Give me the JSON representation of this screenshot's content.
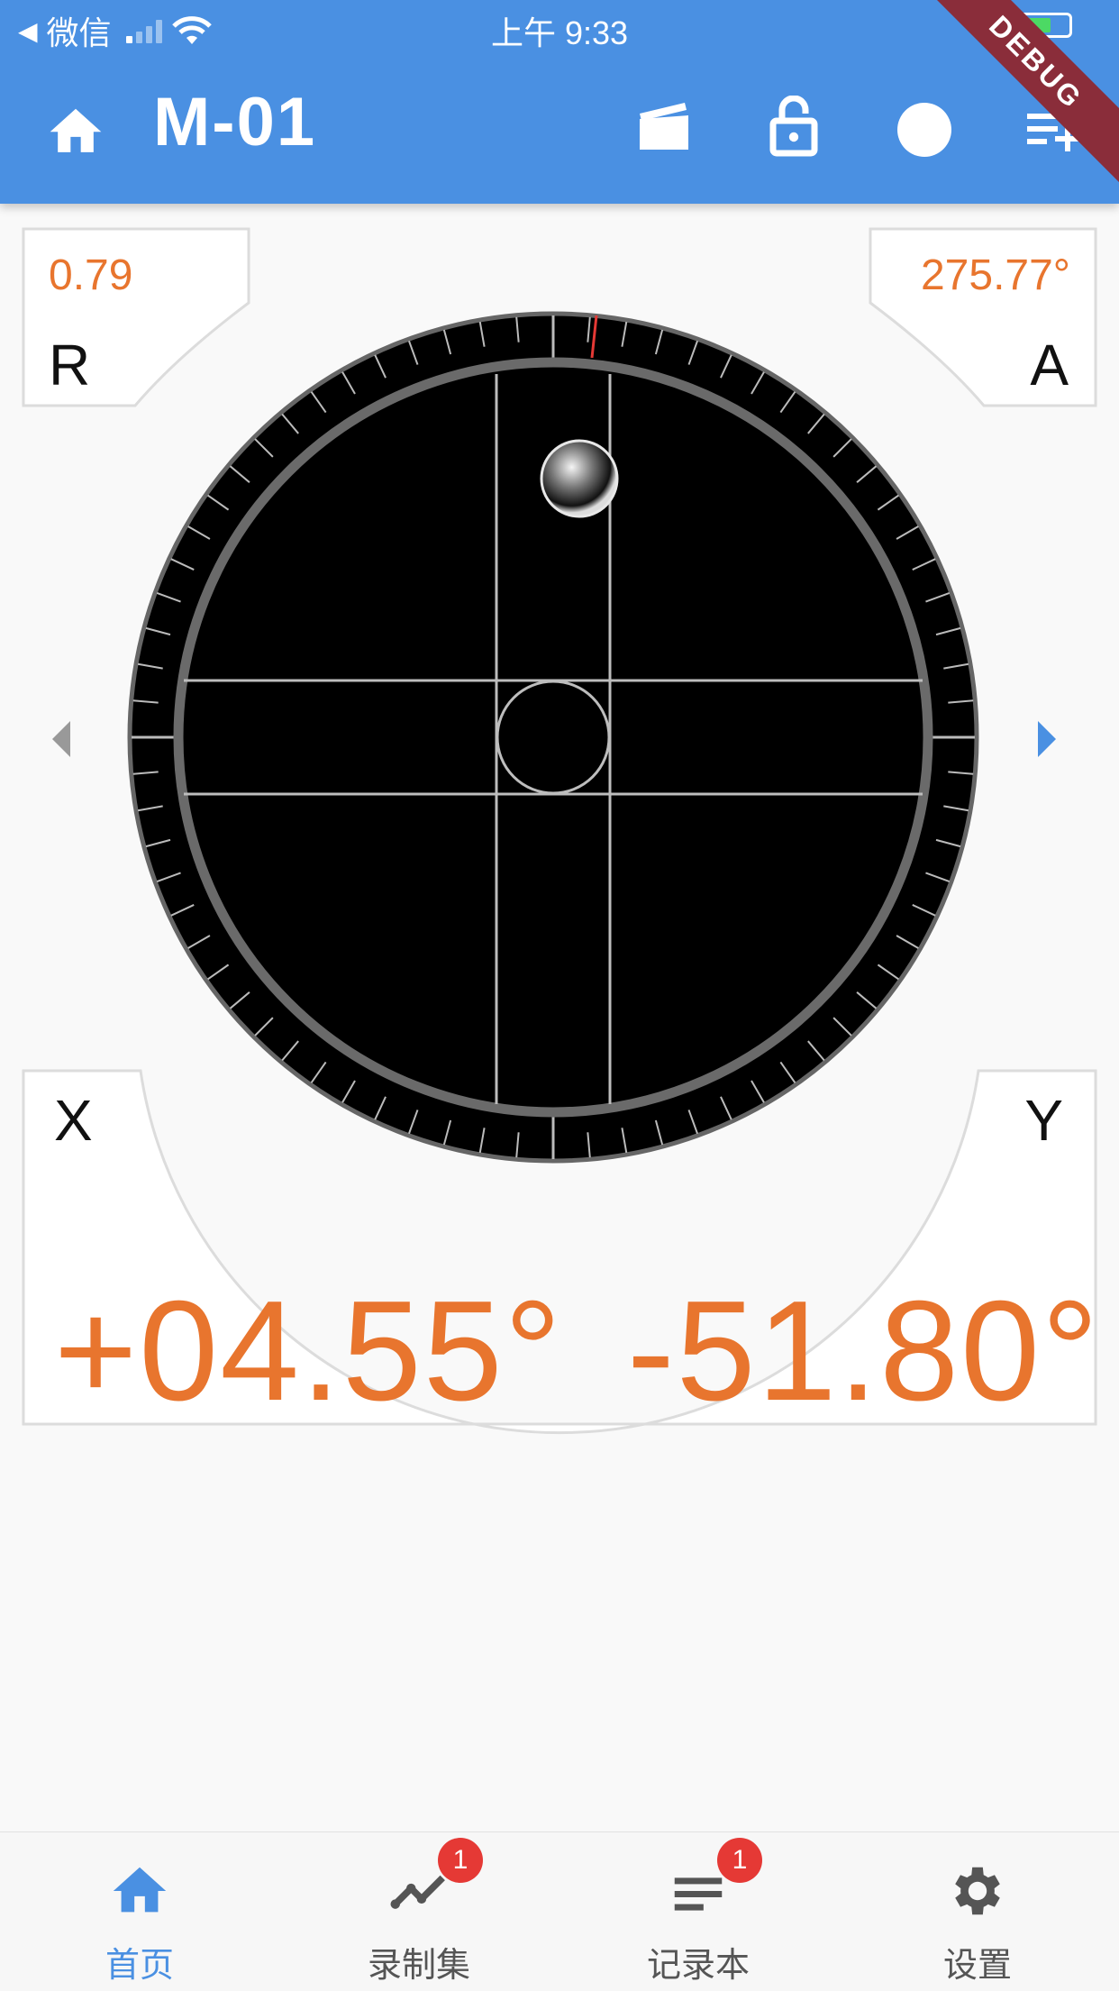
{
  "status_bar": {
    "back_app": "微信",
    "time": "上午 9:33"
  },
  "app_bar": {
    "title": "M-01",
    "debug_banner": "DEBUG"
  },
  "readings": {
    "r_label": "R",
    "r_value": "0.79",
    "a_label": "A",
    "a_value": "275.77°",
    "x_label": "X",
    "x_value": "+04.55°",
    "y_label": "Y",
    "y_value": "-51.80°"
  },
  "bottom_nav": {
    "items": [
      {
        "label": "首页",
        "icon": "home-icon",
        "active": true
      },
      {
        "label": "录制集",
        "icon": "trend-icon",
        "badge": "1"
      },
      {
        "label": "记录本",
        "icon": "notes-icon",
        "badge": "1"
      },
      {
        "label": "设置",
        "icon": "gear-icon"
      }
    ]
  },
  "colors": {
    "primary": "#4a90e2",
    "accent": "#e8752e",
    "badge": "#e53935"
  }
}
